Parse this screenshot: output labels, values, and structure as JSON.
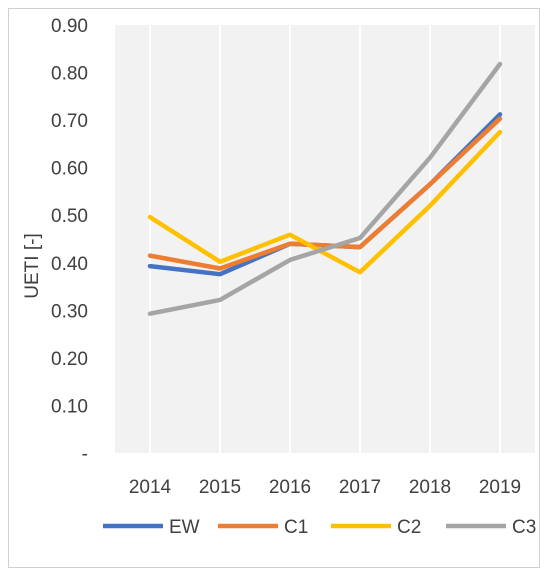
{
  "chart_data": {
    "type": "line",
    "title": "",
    "xlabel": "",
    "ylabel": "UETI [-]",
    "categories": [
      "2014",
      "2015",
      "2016",
      "2017",
      "2018",
      "2019"
    ],
    "ylim": [
      0,
      0.9
    ],
    "ytick_labels": [
      "-",
      "0.10",
      "0.20",
      "0.30",
      "0.40",
      "0.50",
      "0.60",
      "0.70",
      "0.80",
      "0.90"
    ],
    "grid": "vertical",
    "legend_position": "bottom",
    "series": [
      {
        "name": "EW",
        "color": "#4472C4",
        "values": [
          0.393,
          0.376,
          0.44,
          0.433,
          0.565,
          0.712
        ]
      },
      {
        "name": "C1",
        "color": "#ED7D31",
        "values": [
          0.415,
          0.388,
          0.44,
          0.433,
          0.565,
          0.703
        ]
      },
      {
        "name": "C2",
        "color": "#FFC000",
        "values": [
          0.496,
          0.402,
          0.459,
          0.38,
          0.52,
          0.675
        ]
      },
      {
        "name": "C3",
        "color": "#A5A5A5",
        "values": [
          0.293,
          0.322,
          0.406,
          0.452,
          0.621,
          0.818
        ]
      }
    ]
  }
}
